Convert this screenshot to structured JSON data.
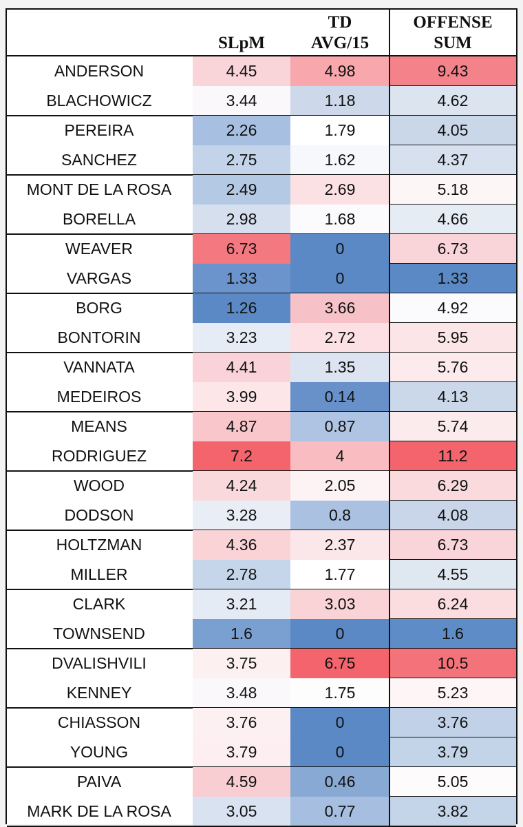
{
  "headers": {
    "name": "",
    "slpm": [
      "",
      "SLpM"
    ],
    "td": [
      "TD",
      "AVG/15"
    ],
    "sum": [
      "OFFENSE",
      "SUM"
    ]
  },
  "rows": [
    {
      "name": "ANDERSON",
      "slpm": "4.45",
      "td": "4.98",
      "sum": "9.43",
      "c1": "#f9d4d8",
      "c2": "#f8a7ac",
      "c3": "#f4828a"
    },
    {
      "name": "BLACHOWICZ",
      "slpm": "3.44",
      "td": "1.18",
      "sum": "4.62",
      "c1": "#fbf8fb",
      "c2": "#cdd9ea",
      "c3": "#dce4f0"
    },
    {
      "name": "PEREIRA",
      "slpm": "2.26",
      "td": "1.79",
      "sum": "4.05",
      "c1": "#a7bfe0",
      "c2": "#ffffff",
      "c3": "#cad7e9"
    },
    {
      "name": "SANCHEZ",
      "slpm": "2.75",
      "td": "1.62",
      "sum": "4.37",
      "c1": "#c3d3e9",
      "c2": "#f6f8fb",
      "c3": "#d6e0ee"
    },
    {
      "name": "MONT DE LA ROSA",
      "slpm": "2.49",
      "td": "2.69",
      "sum": "5.18",
      "c1": "#b4c9e4",
      "c2": "#fce1e4",
      "c3": "#fdf6f7"
    },
    {
      "name": "BORELLA",
      "slpm": "2.98",
      "td": "1.68",
      "sum": "4.66",
      "c1": "#d5dfee",
      "c2": "#fbfbfd",
      "c3": "#e6ecf4"
    },
    {
      "name": "WEAVER",
      "slpm": "6.73",
      "td": "0",
      "sum": "6.73",
      "c1": "#f4787f",
      "c2": "#5b89c5",
      "c3": "#f9d4d8"
    },
    {
      "name": "VARGAS",
      "slpm": "1.33",
      "td": "0",
      "sum": "1.33",
      "c1": "#6a94cb",
      "c2": "#5b89c5",
      "c3": "#5b89c5"
    },
    {
      "name": "BORG",
      "slpm": "1.26",
      "td": "3.66",
      "sum": "4.92",
      "c1": "#5b89c5",
      "c2": "#f7c2c7",
      "c3": "#fbfbfd"
    },
    {
      "name": "BONTORIN",
      "slpm": "3.23",
      "td": "2.72",
      "sum": "5.95",
      "c1": "#e6ecf5",
      "c2": "#fce0e3",
      "c3": "#fbe5e7"
    },
    {
      "name": "VANNATA",
      "slpm": "4.41",
      "td": "1.35",
      "sum": "5.76",
      "c1": "#f9d3d7",
      "c2": "#dbe4f0",
      "c3": "#fceaec"
    },
    {
      "name": "MEDEIROS",
      "slpm": "3.99",
      "td": "0.14",
      "sum": "4.13",
      "c1": "#fce6e8",
      "c2": "#6891ca",
      "c3": "#cbd8ea"
    },
    {
      "name": "MEANS",
      "slpm": "4.87",
      "td": "0.87",
      "sum": "5.74",
      "c1": "#f8c6cb",
      "c2": "#aec4e2",
      "c3": "#fcebed"
    },
    {
      "name": "RODRIGUEZ",
      "slpm": "7.2",
      "td": "4",
      "sum": "11.2",
      "c1": "#f4646c",
      "c2": "#f8bcc1",
      "c3": "#f4646c"
    },
    {
      "name": "WOOD",
      "slpm": "4.24",
      "td": "2.05",
      "sum": "6.29",
      "c1": "#fad9dc",
      "c2": "#fdf3f4",
      "c3": "#fadadd"
    },
    {
      "name": "DODSON",
      "slpm": "3.28",
      "td": "0.8",
      "sum": "4.08",
      "c1": "#e9eef6",
      "c2": "#aac1e1",
      "c3": "#c9d6e9"
    },
    {
      "name": "HOLTZMAN",
      "slpm": "4.36",
      "td": "2.37",
      "sum": "6.73",
      "c1": "#fad3d7",
      "c2": "#fbe7ea",
      "c3": "#f9d4d8"
    },
    {
      "name": "MILLER",
      "slpm": "2.78",
      "td": "1.77",
      "sum": "4.55",
      "c1": "#c5d5ea",
      "c2": "#ffffff",
      "c3": "#dfe7f1"
    },
    {
      "name": "CLARK",
      "slpm": "3.21",
      "td": "3.03",
      "sum": "6.24",
      "c1": "#e4ebf4",
      "c2": "#fad3d7",
      "c3": "#fbdcdf"
    },
    {
      "name": "TOWNSEND",
      "slpm": "1.6",
      "td": "0",
      "sum": "1.6",
      "c1": "#7aa0d1",
      "c2": "#5b89c5",
      "c3": "#5e8cc7"
    },
    {
      "name": "DVALISHVILI",
      "slpm": "3.75",
      "td": "6.75",
      "sum": "10.5",
      "c1": "#fdf0f1",
      "c2": "#f4646c",
      "c3": "#f4727a"
    },
    {
      "name": "KENNEY",
      "slpm": "3.48",
      "td": "1.75",
      "sum": "5.23",
      "c1": "#fbf8fb",
      "c2": "#fdfdfe",
      "c3": "#fdf5f6"
    },
    {
      "name": "CHIASSON",
      "slpm": "3.76",
      "td": "0",
      "sum": "3.76",
      "c1": "#fdf0f2",
      "c2": "#5b89c5",
      "c3": "#c1d1e7"
    },
    {
      "name": "YOUNG",
      "slpm": "3.79",
      "td": "0",
      "sum": "3.79",
      "c1": "#fdeff1",
      "c2": "#5b89c5",
      "c3": "#c3d3e8"
    },
    {
      "name": "PAIVA",
      "slpm": "4.59",
      "td": "0.46",
      "sum": "5.05",
      "c1": "#f9ced2",
      "c2": "#89a9d5",
      "c3": "#fefbfc"
    },
    {
      "name": "MARK DE LA ROSA",
      "slpm": "3.05",
      "td": "0.77",
      "sum": "3.82",
      "c1": "#d8e2f0",
      "c2": "#a6bedf",
      "c3": "#c4d4e9"
    }
  ]
}
